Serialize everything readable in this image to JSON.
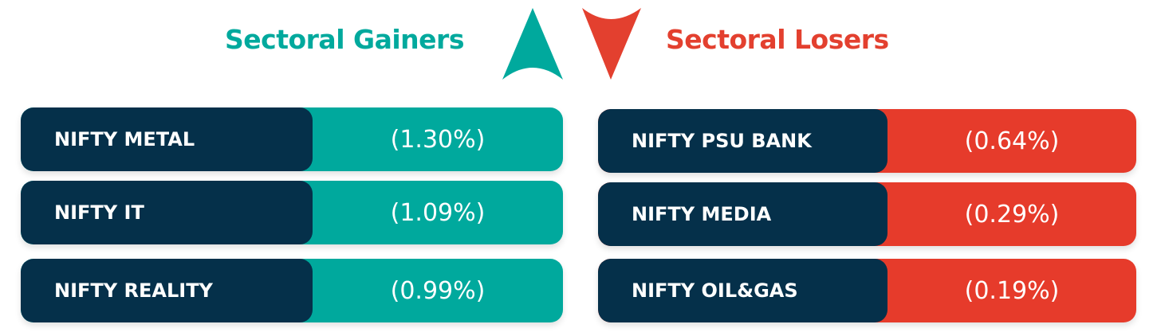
{
  "gainers": {
    "title": "Sectoral Gainers",
    "rows": [
      {
        "sector": "NIFTY METAL",
        "change": "(1.30%)"
      },
      {
        "sector": "NIFTY IT",
        "change": "(1.09%)"
      },
      {
        "sector": "NIFTY REALITY",
        "change": "(0.99%)"
      }
    ]
  },
  "losers": {
    "title": "Sectoral Losers",
    "rows": [
      {
        "sector": "NIFTY PSU BANK",
        "change": "(0.64%)"
      },
      {
        "sector": "NIFTY MEDIA",
        "change": "(0.29%)"
      },
      {
        "sector": "NIFTY OIL&GAS",
        "change": "(0.19%)"
      }
    ]
  }
}
